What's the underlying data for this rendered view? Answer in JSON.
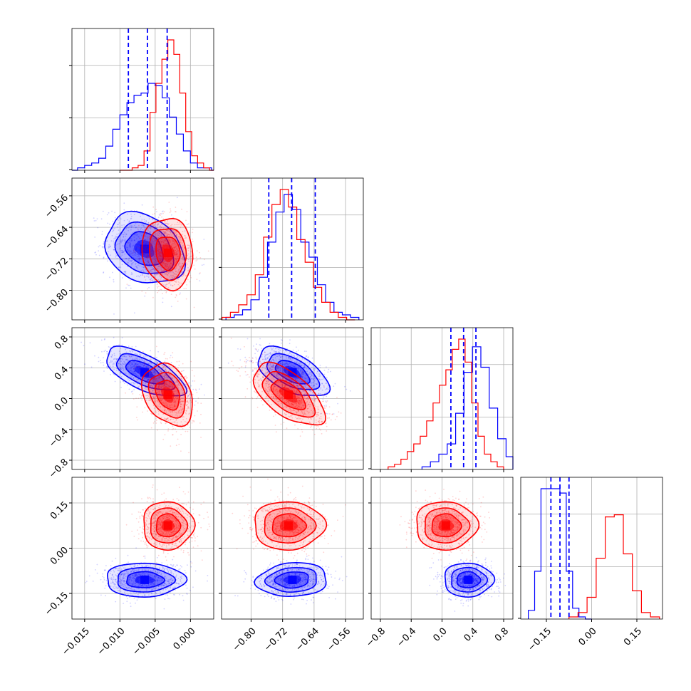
{
  "colors": {
    "blue": "#0000ff",
    "red": "#ff0000",
    "grid": "#b0b0b0",
    "frame": "#000000"
  },
  "chart_data": {
    "type": "corner",
    "title": "",
    "parameters": 4,
    "tick_labels": {
      "p0": [
        "−0.015",
        "−0.010",
        "−0.005",
        "0.000"
      ],
      "p1": [
        "−0.80",
        "−0.72",
        "−0.64",
        "−0.56"
      ],
      "p2": [
        "−0.8",
        "−0.4",
        "0.0",
        "0.4",
        "0.8"
      ],
      "p3": [
        "−0.15",
        "0.00",
        "0.15"
      ]
    },
    "axes": {
      "p0": {
        "range": [
          -0.0168,
          0.0033
        ],
        "ticks": [
          -0.015,
          -0.01,
          -0.005,
          0.0
        ]
      },
      "p1": {
        "range": [
          -0.875,
          -0.515
        ],
        "ticks": [
          -0.8,
          -0.72,
          -0.64,
          -0.56
        ]
      },
      "p2": {
        "range": [
          -0.92,
          0.92
        ],
        "ticks": [
          -0.8,
          -0.4,
          0.0,
          0.4,
          0.8
        ]
      },
      "p3": {
        "range": [
          -0.235,
          0.235
        ],
        "ticks": [
          -0.15,
          0.0,
          0.15
        ]
      }
    },
    "series": [
      {
        "color": "#0000ff",
        "mean": [
          -0.0065,
          -0.695,
          0.34,
          -0.105
        ],
        "sd": [
          0.0028,
          0.045,
          0.16,
          0.028
        ],
        "corr": [
          [
            1,
            -0.25,
            -0.65,
            0.0
          ],
          [
            -0.25,
            1,
            -0.55,
            0.1
          ],
          [
            -0.65,
            -0.55,
            1,
            0.0
          ],
          [
            0.0,
            0.1,
            0.0,
            1
          ]
        ],
        "quantiles_p0": [
          -0.0088,
          -0.0061,
          -0.0033
        ],
        "quantiles_p1": [
          -0.755,
          -0.697,
          -0.637
        ],
        "quantiles_p2": [
          0.115,
          0.28,
          0.44
        ],
        "quantiles_p3": [
          -0.135,
          -0.105,
          -0.075
        ],
        "hist": {
          "p0": [
            0,
            1,
            2,
            3,
            5,
            10,
            17,
            23,
            28,
            31,
            32,
            36,
            35,
            30,
            22,
            15,
            8,
            3,
            1,
            1,
            0
          ],
          "p1": [
            1,
            2,
            4,
            8,
            17,
            31,
            43,
            50,
            44,
            31,
            25,
            14,
            7,
            3,
            2,
            1
          ],
          "p2": [
            1,
            3,
            6,
            10,
            22,
            38,
            48,
            40,
            24,
            12,
            5
          ],
          "p3": [
            4,
            22,
            60,
            60,
            60,
            58,
            22,
            5,
            1,
            0
          ]
        }
      },
      {
        "color": "#ff0000",
        "mean": [
          -0.0032,
          -0.705,
          0.05,
          0.075
        ],
        "sd": [
          0.0018,
          0.045,
          0.2,
          0.04
        ],
        "corr": [
          [
            1,
            -0.1,
            -0.3,
            0.0
          ],
          [
            -0.1,
            1,
            -0.6,
            0.0
          ],
          [
            -0.3,
            -0.6,
            1,
            0.0
          ],
          [
            0.0,
            0.0,
            0.0,
            1
          ]
        ],
        "hist": {
          "p0": [
            0,
            0,
            1,
            2,
            8,
            24,
            36,
            46,
            54,
            48,
            32,
            16,
            6,
            3,
            1,
            0
          ],
          "p1": [
            1,
            3,
            6,
            10,
            18,
            33,
            46,
            52,
            45,
            32,
            23,
            13,
            7,
            3,
            1,
            0
          ],
          "p2": [
            1,
            2,
            4,
            7,
            10,
            13,
            19,
            26,
            33,
            39,
            47,
            51,
            42,
            26,
            13,
            6,
            3,
            1
          ],
          "p3": [
            1,
            3,
            10,
            28,
            47,
            48,
            30,
            13,
            3,
            1
          ]
        }
      }
    ]
  }
}
